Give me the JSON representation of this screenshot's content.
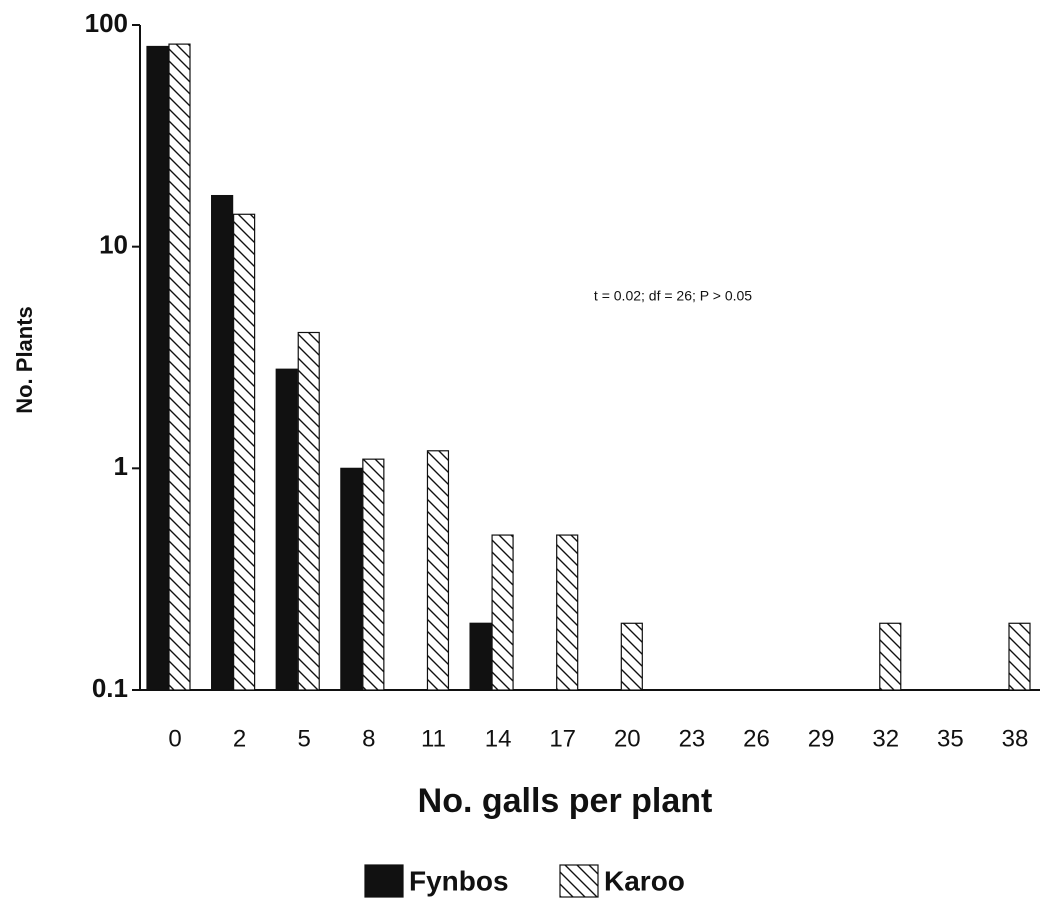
{
  "chart_data": {
    "type": "bar",
    "yscale": "log",
    "x_label": "No. galls per plant",
    "y_label": "No. Plants",
    "annotation": "t = 0.02; df = 26; P > 0.05",
    "categories": [
      "0",
      "2",
      "5",
      "8",
      "11",
      "14",
      "17",
      "20",
      "23",
      "26",
      "29",
      "32",
      "35",
      "38"
    ],
    "series": [
      {
        "name": "Fynbos",
        "color": "#111111",
        "pattern": "solid",
        "values": [
          80,
          17,
          2.8,
          1.0,
          null,
          0.2,
          null,
          null,
          null,
          null,
          null,
          null,
          null,
          null
        ]
      },
      {
        "name": "Karoo",
        "color": "#111111",
        "pattern": "hatch",
        "values": [
          82,
          14,
          4.1,
          1.1,
          1.2,
          0.5,
          0.5,
          0.2,
          null,
          null,
          null,
          0.2,
          null,
          0.2
        ]
      }
    ],
    "ylim": [
      0.1,
      100
    ],
    "yticks": [
      0.1,
      1,
      10,
      100
    ],
    "legend": "bottom",
    "grid": false
  }
}
